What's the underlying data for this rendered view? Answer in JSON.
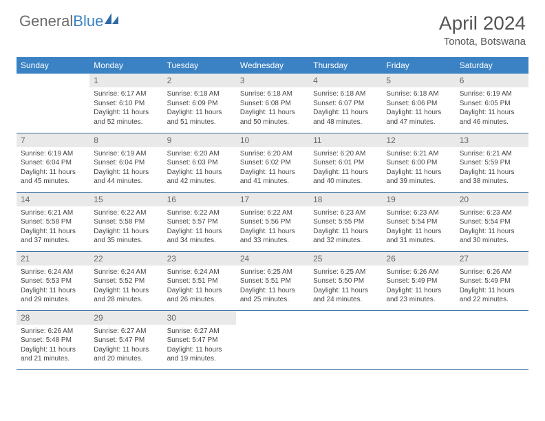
{
  "brand": {
    "part1": "General",
    "part2": "Blue"
  },
  "title": "April 2024",
  "location": "Tonota, Botswana",
  "colors": {
    "header_bg": "#3b82c4",
    "header_text": "#ffffff",
    "daynum_bg": "#e9e9e9",
    "daynum_text": "#666666",
    "border": "#3b6fa0",
    "body_text": "#444444",
    "brand_gray": "#6b6b6b",
    "brand_blue": "#3b82c4"
  },
  "weekdays": [
    "Sunday",
    "Monday",
    "Tuesday",
    "Wednesday",
    "Thursday",
    "Friday",
    "Saturday"
  ],
  "weeks": [
    [
      {
        "empty": true
      },
      {
        "num": "1",
        "sunrise": "Sunrise: 6:17 AM",
        "sunset": "Sunset: 6:10 PM",
        "day1": "Daylight: 11 hours",
        "day2": "and 52 minutes."
      },
      {
        "num": "2",
        "sunrise": "Sunrise: 6:18 AM",
        "sunset": "Sunset: 6:09 PM",
        "day1": "Daylight: 11 hours",
        "day2": "and 51 minutes."
      },
      {
        "num": "3",
        "sunrise": "Sunrise: 6:18 AM",
        "sunset": "Sunset: 6:08 PM",
        "day1": "Daylight: 11 hours",
        "day2": "and 50 minutes."
      },
      {
        "num": "4",
        "sunrise": "Sunrise: 6:18 AM",
        "sunset": "Sunset: 6:07 PM",
        "day1": "Daylight: 11 hours",
        "day2": "and 48 minutes."
      },
      {
        "num": "5",
        "sunrise": "Sunrise: 6:18 AM",
        "sunset": "Sunset: 6:06 PM",
        "day1": "Daylight: 11 hours",
        "day2": "and 47 minutes."
      },
      {
        "num": "6",
        "sunrise": "Sunrise: 6:19 AM",
        "sunset": "Sunset: 6:05 PM",
        "day1": "Daylight: 11 hours",
        "day2": "and 46 minutes."
      }
    ],
    [
      {
        "num": "7",
        "sunrise": "Sunrise: 6:19 AM",
        "sunset": "Sunset: 6:04 PM",
        "day1": "Daylight: 11 hours",
        "day2": "and 45 minutes."
      },
      {
        "num": "8",
        "sunrise": "Sunrise: 6:19 AM",
        "sunset": "Sunset: 6:04 PM",
        "day1": "Daylight: 11 hours",
        "day2": "and 44 minutes."
      },
      {
        "num": "9",
        "sunrise": "Sunrise: 6:20 AM",
        "sunset": "Sunset: 6:03 PM",
        "day1": "Daylight: 11 hours",
        "day2": "and 42 minutes."
      },
      {
        "num": "10",
        "sunrise": "Sunrise: 6:20 AM",
        "sunset": "Sunset: 6:02 PM",
        "day1": "Daylight: 11 hours",
        "day2": "and 41 minutes."
      },
      {
        "num": "11",
        "sunrise": "Sunrise: 6:20 AM",
        "sunset": "Sunset: 6:01 PM",
        "day1": "Daylight: 11 hours",
        "day2": "and 40 minutes."
      },
      {
        "num": "12",
        "sunrise": "Sunrise: 6:21 AM",
        "sunset": "Sunset: 6:00 PM",
        "day1": "Daylight: 11 hours",
        "day2": "and 39 minutes."
      },
      {
        "num": "13",
        "sunrise": "Sunrise: 6:21 AM",
        "sunset": "Sunset: 5:59 PM",
        "day1": "Daylight: 11 hours",
        "day2": "and 38 minutes."
      }
    ],
    [
      {
        "num": "14",
        "sunrise": "Sunrise: 6:21 AM",
        "sunset": "Sunset: 5:58 PM",
        "day1": "Daylight: 11 hours",
        "day2": "and 37 minutes."
      },
      {
        "num": "15",
        "sunrise": "Sunrise: 6:22 AM",
        "sunset": "Sunset: 5:58 PM",
        "day1": "Daylight: 11 hours",
        "day2": "and 35 minutes."
      },
      {
        "num": "16",
        "sunrise": "Sunrise: 6:22 AM",
        "sunset": "Sunset: 5:57 PM",
        "day1": "Daylight: 11 hours",
        "day2": "and 34 minutes."
      },
      {
        "num": "17",
        "sunrise": "Sunrise: 6:22 AM",
        "sunset": "Sunset: 5:56 PM",
        "day1": "Daylight: 11 hours",
        "day2": "and 33 minutes."
      },
      {
        "num": "18",
        "sunrise": "Sunrise: 6:23 AM",
        "sunset": "Sunset: 5:55 PM",
        "day1": "Daylight: 11 hours",
        "day2": "and 32 minutes."
      },
      {
        "num": "19",
        "sunrise": "Sunrise: 6:23 AM",
        "sunset": "Sunset: 5:54 PM",
        "day1": "Daylight: 11 hours",
        "day2": "and 31 minutes."
      },
      {
        "num": "20",
        "sunrise": "Sunrise: 6:23 AM",
        "sunset": "Sunset: 5:54 PM",
        "day1": "Daylight: 11 hours",
        "day2": "and 30 minutes."
      }
    ],
    [
      {
        "num": "21",
        "sunrise": "Sunrise: 6:24 AM",
        "sunset": "Sunset: 5:53 PM",
        "day1": "Daylight: 11 hours",
        "day2": "and 29 minutes."
      },
      {
        "num": "22",
        "sunrise": "Sunrise: 6:24 AM",
        "sunset": "Sunset: 5:52 PM",
        "day1": "Daylight: 11 hours",
        "day2": "and 28 minutes."
      },
      {
        "num": "23",
        "sunrise": "Sunrise: 6:24 AM",
        "sunset": "Sunset: 5:51 PM",
        "day1": "Daylight: 11 hours",
        "day2": "and 26 minutes."
      },
      {
        "num": "24",
        "sunrise": "Sunrise: 6:25 AM",
        "sunset": "Sunset: 5:51 PM",
        "day1": "Daylight: 11 hours",
        "day2": "and 25 minutes."
      },
      {
        "num": "25",
        "sunrise": "Sunrise: 6:25 AM",
        "sunset": "Sunset: 5:50 PM",
        "day1": "Daylight: 11 hours",
        "day2": "and 24 minutes."
      },
      {
        "num": "26",
        "sunrise": "Sunrise: 6:26 AM",
        "sunset": "Sunset: 5:49 PM",
        "day1": "Daylight: 11 hours",
        "day2": "and 23 minutes."
      },
      {
        "num": "27",
        "sunrise": "Sunrise: 6:26 AM",
        "sunset": "Sunset: 5:49 PM",
        "day1": "Daylight: 11 hours",
        "day2": "and 22 minutes."
      }
    ],
    [
      {
        "num": "28",
        "sunrise": "Sunrise: 6:26 AM",
        "sunset": "Sunset: 5:48 PM",
        "day1": "Daylight: 11 hours",
        "day2": "and 21 minutes."
      },
      {
        "num": "29",
        "sunrise": "Sunrise: 6:27 AM",
        "sunset": "Sunset: 5:47 PM",
        "day1": "Daylight: 11 hours",
        "day2": "and 20 minutes."
      },
      {
        "num": "30",
        "sunrise": "Sunrise: 6:27 AM",
        "sunset": "Sunset: 5:47 PM",
        "day1": "Daylight: 11 hours",
        "day2": "and 19 minutes."
      },
      {
        "empty": true
      },
      {
        "empty": true
      },
      {
        "empty": true
      },
      {
        "empty": true
      }
    ]
  ]
}
